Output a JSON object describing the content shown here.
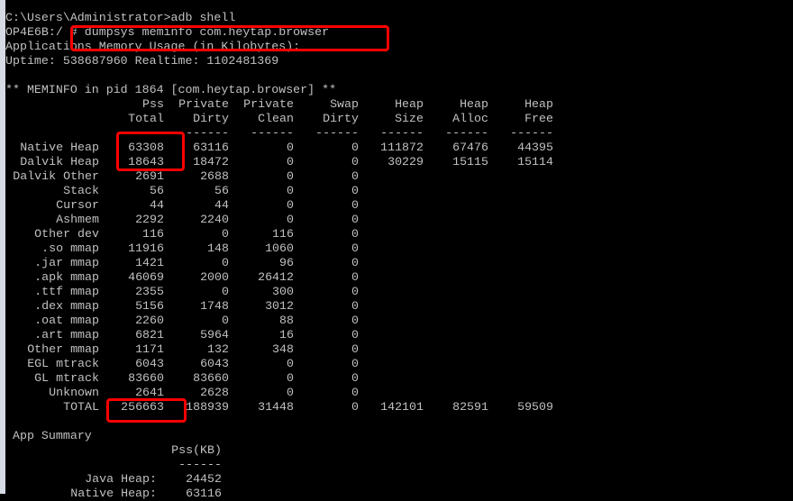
{
  "terminal": {
    "prompt_line": "C:\\Users\\Administrator>adb shell",
    "command_line": "OP4E6B:/ # dumpsys meminfo com.heytap.browser",
    "usage_line": "Applications Memory Usage (in Kilobytes):",
    "uptime_line": "Uptime: 538687960 Realtime: 1102481369",
    "meminfo_title": "** MEMINFO in pid 1864 [com.heytap.browser] **"
  },
  "table": {
    "header_top": [
      "Pss",
      "Private",
      "Private",
      "Swap",
      "Heap",
      "Heap",
      "Heap"
    ],
    "header_bottom": [
      "Total",
      "Dirty",
      "Clean",
      "Dirty",
      "Size",
      "Alloc",
      "Free"
    ],
    "separator": "------",
    "rows": [
      {
        "label": "Native Heap",
        "values": [
          "63308",
          "63116",
          "0",
          "0",
          "111872",
          "67476",
          "44395"
        ]
      },
      {
        "label": "Dalvik Heap",
        "values": [
          "18643",
          "18472",
          "0",
          "0",
          "30229",
          "15115",
          "15114"
        ]
      },
      {
        "label": "Dalvik Other",
        "values": [
          "2691",
          "2688",
          "0",
          "0"
        ]
      },
      {
        "label": "Stack",
        "values": [
          "56",
          "56",
          "0",
          "0"
        ]
      },
      {
        "label": "Cursor",
        "values": [
          "44",
          "44",
          "0",
          "0"
        ]
      },
      {
        "label": "Ashmem",
        "values": [
          "2292",
          "2240",
          "0",
          "0"
        ]
      },
      {
        "label": "Other dev",
        "values": [
          "116",
          "0",
          "116",
          "0"
        ]
      },
      {
        "label": ".so mmap",
        "values": [
          "11916",
          "148",
          "1060",
          "0"
        ]
      },
      {
        "label": ".jar mmap",
        "values": [
          "1421",
          "0",
          "96",
          "0"
        ]
      },
      {
        "label": ".apk mmap",
        "values": [
          "46069",
          "2000",
          "26412",
          "0"
        ]
      },
      {
        "label": ".ttf mmap",
        "values": [
          "2355",
          "0",
          "300",
          "0"
        ]
      },
      {
        "label": ".dex mmap",
        "values": [
          "5156",
          "1748",
          "3012",
          "0"
        ]
      },
      {
        "label": ".oat mmap",
        "values": [
          "2260",
          "0",
          "88",
          "0"
        ]
      },
      {
        "label": ".art mmap",
        "values": [
          "6821",
          "5964",
          "16",
          "0"
        ]
      },
      {
        "label": "Other mmap",
        "values": [
          "1171",
          "132",
          "348",
          "0"
        ]
      },
      {
        "label": "EGL mtrack",
        "values": [
          "6043",
          "6043",
          "0",
          "0"
        ]
      },
      {
        "label": "GL mtrack",
        "values": [
          "83660",
          "83660",
          "0",
          "0"
        ]
      },
      {
        "label": "Unknown",
        "values": [
          "2641",
          "2628",
          "0",
          "0"
        ]
      },
      {
        "label": "TOTAL",
        "values": [
          "256663",
          "188939",
          "31448",
          "0",
          "142101",
          "82591",
          "59509"
        ]
      }
    ]
  },
  "summary": {
    "title": "App Summary",
    "header": "Pss(KB)",
    "separator": "------",
    "rows": [
      {
        "label": "Java Heap:",
        "value": "24452"
      },
      {
        "label": "Native Heap:",
        "value": "63116"
      }
    ]
  },
  "highlight_color": "#ff0000"
}
